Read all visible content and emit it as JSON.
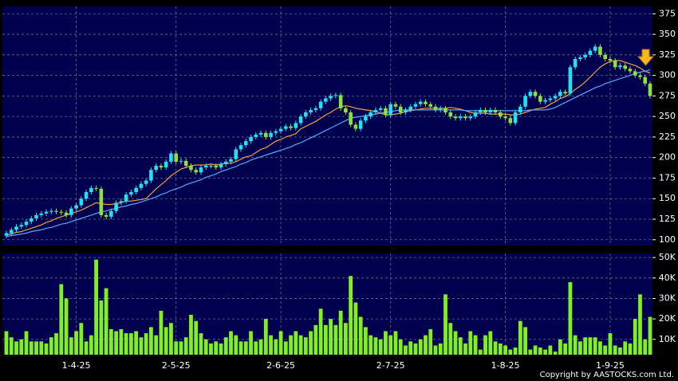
{
  "chart_data": [
    {
      "type": "candlestick",
      "categories": [
        null,
        null,
        null,
        null,
        null,
        null,
        null,
        null,
        null,
        null,
        null,
        null,
        null,
        null,
        "1-4-25",
        null,
        null,
        null,
        null,
        null,
        null,
        null,
        null,
        null,
        null,
        null,
        null,
        null,
        null,
        null,
        null,
        null,
        null,
        null,
        "2-5-25",
        null,
        null,
        null,
        null,
        null,
        null,
        null,
        null,
        null,
        null,
        null,
        null,
        null,
        null,
        null,
        null,
        null,
        null,
        null,
        null,
        "2-6-25",
        null,
        null,
        null,
        null,
        null,
        null,
        null,
        null,
        null,
        null,
        null,
        null,
        null,
        null,
        null,
        null,
        null,
        null,
        null,
        null,
        null,
        "2-7-25",
        null,
        null,
        null,
        null,
        null,
        null,
        null,
        null,
        null,
        null,
        null,
        null,
        null,
        null,
        null,
        null,
        null,
        null,
        null,
        null,
        null,
        null,
        "1-8-25",
        null,
        null,
        null,
        null,
        null,
        null,
        null,
        null,
        null,
        null,
        null,
        null,
        null,
        null,
        null,
        null,
        null,
        null,
        null,
        null,
        "1-9-25",
        null,
        null,
        null,
        null,
        null,
        null,
        null,
        null
      ],
      "open": [
        105,
        108,
        112,
        116,
        118,
        122,
        126,
        130,
        132,
        134,
        135,
        134,
        133,
        130,
        138,
        142,
        150,
        158,
        163,
        162,
        130,
        128,
        135,
        145,
        147,
        155,
        158,
        163,
        168,
        172,
        185,
        190,
        188,
        195,
        205,
        195,
        196,
        190,
        185,
        182,
        188,
        190,
        190,
        188,
        192,
        195,
        198,
        210,
        215,
        220,
        225,
        228,
        230,
        225,
        230,
        232,
        235,
        238,
        236,
        242,
        250,
        255,
        258,
        260,
        268,
        272,
        275,
        276,
        260,
        255,
        240,
        235,
        245,
        250,
        255,
        258,
        260,
        252,
        265,
        262,
        255,
        258,
        262,
        265,
        268,
        265,
        262,
        258,
        260,
        255,
        250,
        248,
        250,
        248,
        250,
        255,
        258,
        255,
        258,
        255,
        250,
        248,
        242,
        255,
        262,
        275,
        280,
        275,
        268,
        270,
        272,
        275,
        280,
        278,
        310,
        320,
        322,
        325,
        330,
        335,
        325,
        320,
        318,
        310,
        312,
        308,
        305,
        300,
        298,
        290
      ],
      "high": [
        111,
        115,
        119,
        121,
        125,
        129,
        133,
        135,
        137,
        138,
        138,
        137,
        136,
        141,
        145,
        153,
        161,
        166,
        166,
        165,
        133,
        138,
        148,
        150,
        158,
        161,
        166,
        171,
        175,
        188,
        193,
        193,
        198,
        208,
        208,
        199,
        199,
        193,
        188,
        191,
        193,
        193,
        193,
        195,
        198,
        201,
        213,
        218,
        223,
        228,
        231,
        233,
        233,
        233,
        235,
        238,
        241,
        241,
        245,
        253,
        258,
        261,
        263,
        271,
        275,
        278,
        279,
        279,
        263,
        258,
        243,
        248,
        253,
        258,
        261,
        263,
        263,
        268,
        268,
        265,
        261,
        265,
        268,
        271,
        271,
        268,
        265,
        263,
        263,
        258,
        253,
        253,
        253,
        253,
        258,
        261,
        261,
        261,
        261,
        258,
        253,
        251,
        258,
        265,
        278,
        283,
        283,
        278,
        273,
        275,
        278,
        283,
        283,
        313,
        323,
        325,
        328,
        333,
        338,
        338,
        328,
        323,
        321,
        315,
        315,
        311,
        308,
        303,
        301,
        293
      ],
      "low": [
        102,
        105,
        109,
        113,
        115,
        119,
        123,
        127,
        129,
        131,
        131,
        130,
        127,
        127,
        135,
        139,
        147,
        155,
        159,
        127,
        125,
        125,
        132,
        142,
        144,
        152,
        155,
        160,
        165,
        169,
        182,
        185,
        185,
        192,
        192,
        192,
        187,
        182,
        179,
        179,
        185,
        187,
        185,
        185,
        189,
        192,
        195,
        207,
        212,
        217,
        222,
        225,
        222,
        222,
        227,
        229,
        232,
        233,
        233,
        239,
        247,
        252,
        255,
        257,
        265,
        269,
        272,
        257,
        252,
        237,
        232,
        232,
        242,
        247,
        252,
        255,
        249,
        249,
        259,
        252,
        252,
        255,
        259,
        262,
        262,
        259,
        255,
        255,
        252,
        247,
        245,
        245,
        245,
        245,
        247,
        252,
        252,
        252,
        252,
        247,
        245,
        239,
        239,
        252,
        259,
        272,
        272,
        265,
        265,
        267,
        269,
        272,
        275,
        275,
        307,
        317,
        319,
        322,
        327,
        322,
        317,
        315,
        307,
        307,
        305,
        302,
        297,
        295,
        287,
        272
      ],
      "close": [
        108,
        112,
        116,
        118,
        122,
        126,
        130,
        132,
        134,
        135,
        134,
        133,
        130,
        138,
        142,
        150,
        158,
        163,
        162,
        130,
        128,
        135,
        145,
        147,
        155,
        158,
        163,
        168,
        172,
        185,
        190,
        188,
        195,
        205,
        195,
        196,
        190,
        185,
        182,
        188,
        190,
        190,
        188,
        192,
        195,
        198,
        210,
        215,
        220,
        225,
        228,
        230,
        225,
        230,
        232,
        235,
        238,
        236,
        242,
        250,
        255,
        258,
        260,
        268,
        272,
        275,
        276,
        260,
        255,
        240,
        235,
        245,
        250,
        255,
        258,
        260,
        252,
        265,
        262,
        255,
        258,
        262,
        265,
        268,
        265,
        262,
        258,
        260,
        255,
        250,
        248,
        250,
        248,
        250,
        255,
        258,
        255,
        258,
        255,
        250,
        248,
        242,
        255,
        262,
        275,
        280,
        275,
        268,
        270,
        272,
        275,
        280,
        278,
        310,
        320,
        322,
        325,
        330,
        335,
        325,
        320,
        318,
        310,
        312,
        308,
        305,
        300,
        298,
        290,
        275
      ],
      "up_color": "#22e2f2",
      "down_color": "#8ee03a",
      "lines": [
        {
          "color": "#f0a040",
          "values": [
            106,
            107,
            109,
            110,
            112,
            114,
            116,
            118,
            121,
            123,
            126,
            128,
            130,
            132,
            134,
            136,
            139,
            142,
            145,
            144,
            143,
            143,
            144,
            145,
            147,
            147,
            148,
            149,
            150,
            156,
            162,
            167,
            172,
            178,
            182,
            186,
            188,
            190,
            191,
            191,
            191,
            192,
            191,
            192,
            193,
            193,
            195,
            198,
            201,
            202,
            206,
            210,
            212,
            216,
            220,
            222,
            225,
            227,
            229,
            235,
            238,
            241,
            244,
            248,
            252,
            255,
            259,
            262,
            263,
            262,
            260,
            259,
            258,
            257,
            256,
            254,
            252,
            252,
            253,
            254,
            256,
            257,
            258,
            259,
            260,
            260,
            260,
            260,
            260,
            261,
            260,
            259,
            257,
            255,
            254,
            254,
            254,
            253,
            253,
            253,
            253,
            252,
            252,
            253,
            255,
            257,
            259,
            260,
            261,
            265,
            268,
            272,
            274,
            278,
            283,
            287,
            292,
            298,
            304,
            310,
            314,
            317,
            318,
            318,
            316,
            314,
            312,
            309,
            305,
            303
          ]
        },
        {
          "color": "#5aa8ff",
          "values": [
            104,
            105,
            106,
            107,
            108,
            110,
            111,
            112,
            114,
            115,
            117,
            119,
            120,
            122,
            124,
            126,
            128,
            130,
            132,
            134,
            135,
            137,
            138,
            140,
            141,
            143,
            144,
            146,
            148,
            150,
            152,
            155,
            157,
            160,
            162,
            164,
            167,
            169,
            171,
            173,
            176,
            178,
            180,
            183,
            185,
            187,
            189,
            192,
            194,
            197,
            199,
            201,
            203,
            205,
            207,
            209,
            211,
            213,
            216,
            218,
            221,
            224,
            227,
            230,
            233,
            236,
            239,
            242,
            245,
            248,
            249,
            250,
            251,
            252,
            253,
            254,
            255,
            256,
            257,
            258,
            258,
            258,
            258,
            258,
            258,
            258,
            258,
            258,
            258,
            258,
            258,
            258,
            257,
            257,
            257,
            257,
            257,
            257,
            257,
            257,
            257,
            257,
            257,
            257,
            257,
            258,
            258,
            258,
            258,
            259,
            261,
            264,
            267,
            270,
            273,
            276,
            279,
            282,
            285,
            287,
            290,
            292,
            294,
            296,
            298,
            300,
            302,
            304,
            305,
            307
          ]
        }
      ],
      "ylim": [
        93,
        384
      ],
      "yticks": [
        100,
        125,
        150,
        175,
        200,
        225,
        250,
        275,
        300,
        325,
        350,
        375
      ],
      "grid": true
    },
    {
      "type": "bar",
      "color": "#80f020",
      "values": [
        14000,
        11000,
        9000,
        10000,
        14000,
        9000,
        9000,
        9000,
        8000,
        11000,
        13000,
        37000,
        30000,
        11000,
        14000,
        18000,
        9000,
        12000,
        49000,
        29000,
        35000,
        15000,
        14000,
        15000,
        13000,
        13000,
        14000,
        11000,
        13000,
        16000,
        12000,
        24000,
        16000,
        18000,
        9000,
        9000,
        11000,
        22000,
        19000,
        13000,
        10000,
        8000,
        9000,
        8000,
        11000,
        14000,
        12000,
        9000,
        9000,
        14000,
        9000,
        10000,
        20000,
        12000,
        10000,
        14000,
        9000,
        12000,
        14000,
        12000,
        11000,
        14000,
        17000,
        25000,
        17000,
        20000,
        17000,
        24000,
        18000,
        41000,
        28000,
        21000,
        16000,
        12000,
        11000,
        10000,
        14000,
        12000,
        14000,
        10000,
        7000,
        9000,
        8000,
        10000,
        12000,
        15000,
        7000,
        8000,
        32000,
        18000,
        14000,
        11000,
        8000,
        14000,
        12000,
        5000,
        12000,
        14000,
        9000,
        8000,
        7000,
        5000,
        6000,
        19000,
        16000,
        5000,
        7000,
        6000,
        5000,
        7000,
        4000,
        10000,
        8000,
        38000,
        12000,
        9000,
        11000,
        11000,
        11000,
        9000,
        7000,
        13000,
        7000,
        6000,
        9000,
        8000,
        20000,
        32000,
        10000,
        21000
      ],
      "ylim": [
        2500,
        52000
      ],
      "yticks": [
        {
          "value": 10000,
          "label": "10K"
        },
        {
          "value": 20000,
          "label": "20K"
        },
        {
          "value": 30000,
          "label": "30K"
        },
        {
          "value": 40000,
          "label": "40K"
        },
        {
          "value": 50000,
          "label": "50K"
        }
      ],
      "grid": true
    }
  ],
  "footer": "Copyright by AASTOCKS.com Ltd."
}
